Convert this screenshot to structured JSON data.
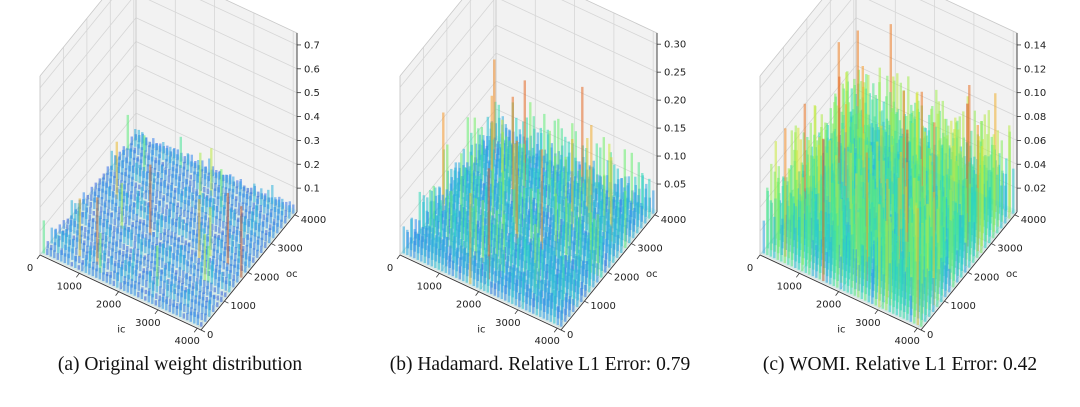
{
  "colors": {
    "pane": "#f2f2f2",
    "grid": "#d6d6d6",
    "axis": "#333333",
    "colormap": [
      "#3a2bd3",
      "#2f8ef0",
      "#27d6c4",
      "#6bf06a",
      "#d6e83a",
      "#f79a2a",
      "#d0301e"
    ]
  },
  "chart_data": [
    {
      "type": "3d-surface",
      "caption": "(a) Original weight distribution",
      "xlabel": "ic",
      "ylabel": "oc",
      "zlabel": "",
      "x_ticks": [
        0,
        1000,
        2000,
        3000,
        4000
      ],
      "y_ticks": [
        0,
        1000,
        2000,
        3000,
        4000
      ],
      "z_ticks": [
        0.1,
        0.2,
        0.3,
        0.4,
        0.5,
        0.6,
        0.7
      ],
      "xlim": [
        0,
        4096
      ],
      "ylim": [
        0,
        4096
      ],
      "zlim": [
        0,
        0.75
      ],
      "typical_magnitude": 0.05,
      "peak_magnitude": 0.3,
      "pattern": "grid-structured outliers along rows and columns",
      "seed": 11
    },
    {
      "type": "3d-surface",
      "caption": "(b) Hadamard. Relative L1 Error: 0.79",
      "xlabel": "ic",
      "ylabel": "oc",
      "zlabel": "",
      "x_ticks": [
        0,
        1000,
        2000,
        3000,
        4000
      ],
      "y_ticks": [
        0,
        1000,
        2000,
        3000,
        4000
      ],
      "z_ticks": [
        0.05,
        0.1,
        0.15,
        0.2,
        0.25,
        0.3
      ],
      "tick_labels_z": [
        "0.05",
        "0.10",
        "0.15",
        "0.20",
        "0.25",
        "0.30"
      ],
      "xlim": [
        0,
        4096
      ],
      "ylim": [
        0,
        4096
      ],
      "zlim": [
        0,
        0.32
      ],
      "typical_magnitude": 0.06,
      "peak_magnitude": 0.2,
      "pattern": "row bands of larger magnitude after Hadamard rotation",
      "relative_l1_error": 0.79,
      "seed": 23
    },
    {
      "type": "3d-surface",
      "caption": "(c) WOMI. Relative L1 Error: 0.42",
      "xlabel": "ic",
      "ylabel": "oc",
      "zlabel": "",
      "x_ticks": [
        0,
        1000,
        2000,
        3000,
        4000
      ],
      "y_ticks": [
        0,
        1000,
        2000,
        3000,
        4000
      ],
      "z_ticks": [
        0.02,
        0.04,
        0.06,
        0.08,
        0.1,
        0.12,
        0.14
      ],
      "tick_labels_z": [
        "0.02",
        "0.04",
        "0.06",
        "0.08",
        "0.10",
        "0.12",
        "0.14"
      ],
      "xlim": [
        0,
        4096
      ],
      "ylim": [
        0,
        4096
      ],
      "zlim": [
        0,
        0.15
      ],
      "typical_magnitude": 0.07,
      "peak_magnitude": 0.12,
      "pattern": "dense uniform spikes across the whole matrix",
      "relative_l1_error": 0.42,
      "seed": 37
    }
  ]
}
